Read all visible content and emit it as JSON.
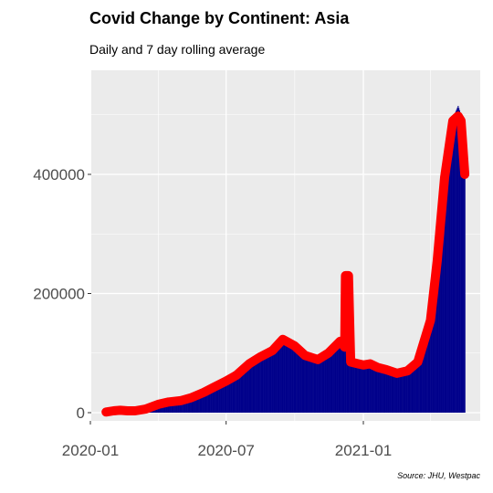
{
  "title": "Covid Change by Continent: Asia",
  "subtitle": "Daily and 7 day rolling average",
  "caption": "Source: JHU, Westpac",
  "colors": {
    "bars": "#00008B",
    "rolling": "#FF0000",
    "panel": "#EBEBEB",
    "grid": "#FFFFFF"
  },
  "chart_data": {
    "type": "bar",
    "title": "Covid Change by Continent: Asia",
    "subtitle": "Daily and 7 day rolling average",
    "xlabel": "",
    "ylabel": "",
    "ylim": [
      0,
      520000
    ],
    "y_ticks": [
      0,
      200000,
      400000
    ],
    "y_tick_labels": [
      "0",
      "200000",
      "400000"
    ],
    "x_ticks": [
      "2020-01",
      "2020-07",
      "2021-01"
    ],
    "x_tick_labels": [
      "2020-01",
      "2020-07",
      "2021-01"
    ],
    "grid": true,
    "legend": "none",
    "series": [
      {
        "type": "bar",
        "values_by_date": [
          [
            "2020-01-22",
            2000
          ],
          [
            "2020-02-01",
            3000
          ],
          [
            "2020-02-10",
            9000
          ],
          [
            "2020-02-20",
            2000
          ],
          [
            "2020-03-01",
            3000
          ],
          [
            "2020-03-15",
            6000
          ],
          [
            "2020-04-01",
            14000
          ],
          [
            "2020-04-15",
            18000
          ],
          [
            "2020-05-01",
            20000
          ],
          [
            "2020-05-15",
            25000
          ],
          [
            "2020-06-01",
            34000
          ],
          [
            "2020-06-15",
            43000
          ],
          [
            "2020-07-01",
            53000
          ],
          [
            "2020-07-15",
            63000
          ],
          [
            "2020-08-01",
            82000
          ],
          [
            "2020-08-15",
            93000
          ],
          [
            "2020-09-01",
            104000
          ],
          [
            "2020-09-15",
            123000
          ],
          [
            "2020-10-01",
            112000
          ],
          [
            "2020-10-15",
            96000
          ],
          [
            "2020-11-01",
            89000
          ],
          [
            "2020-11-15",
            100000
          ],
          [
            "2020-12-01",
            120000
          ],
          [
            "2020-12-07",
            110000
          ],
          [
            "2020-12-15",
            85000
          ],
          [
            "2020-12-25",
            82000
          ],
          [
            "2021-01-01",
            80000
          ],
          [
            "2021-01-10",
            80000
          ],
          [
            "2021-01-20",
            76000
          ],
          [
            "2021-02-01",
            72000
          ],
          [
            "2021-02-15",
            65000
          ],
          [
            "2021-03-01",
            70000
          ],
          [
            "2021-03-15",
            85000
          ],
          [
            "2021-04-01",
            160000
          ],
          [
            "2021-04-10",
            260000
          ],
          [
            "2021-04-20",
            400000
          ],
          [
            "2021-05-01",
            495000
          ],
          [
            "2021-05-08",
            515000
          ],
          [
            "2021-05-12",
            500000
          ],
          [
            "2021-05-17",
            400000
          ]
        ]
      },
      {
        "type": "line",
        "values_by_date": [
          [
            "2020-01-22",
            1000
          ],
          [
            "2020-02-01",
            3000
          ],
          [
            "2020-02-10",
            4000
          ],
          [
            "2020-02-20",
            3000
          ],
          [
            "2020-03-01",
            3000
          ],
          [
            "2020-03-15",
            6000
          ],
          [
            "2020-04-01",
            14000
          ],
          [
            "2020-04-15",
            18000
          ],
          [
            "2020-05-01",
            20000
          ],
          [
            "2020-05-15",
            25000
          ],
          [
            "2020-06-01",
            34000
          ],
          [
            "2020-06-15",
            43000
          ],
          [
            "2020-07-01",
            53000
          ],
          [
            "2020-07-15",
            63000
          ],
          [
            "2020-08-01",
            82000
          ],
          [
            "2020-08-15",
            93000
          ],
          [
            "2020-09-01",
            104000
          ],
          [
            "2020-09-15",
            123000
          ],
          [
            "2020-10-01",
            112000
          ],
          [
            "2020-10-15",
            96000
          ],
          [
            "2020-11-01",
            89000
          ],
          [
            "2020-11-15",
            100000
          ],
          [
            "2020-12-01",
            120000
          ],
          [
            "2020-12-07",
            110000
          ],
          [
            "2020-12-08",
            230000
          ],
          [
            "2020-12-12",
            230000
          ],
          [
            "2020-12-15",
            85000
          ],
          [
            "2020-12-25",
            82000
          ],
          [
            "2021-01-01",
            80000
          ],
          [
            "2021-01-10",
            82000
          ],
          [
            "2021-01-20",
            76000
          ],
          [
            "2021-02-01",
            72000
          ],
          [
            "2021-02-15",
            66000
          ],
          [
            "2021-03-01",
            70000
          ],
          [
            "2021-03-15",
            85000
          ],
          [
            "2021-04-01",
            155000
          ],
          [
            "2021-04-10",
            255000
          ],
          [
            "2021-04-20",
            395000
          ],
          [
            "2021-05-01",
            490000
          ],
          [
            "2021-05-08",
            498000
          ],
          [
            "2021-05-12",
            490000
          ],
          [
            "2021-05-17",
            400000
          ]
        ]
      }
    ]
  }
}
